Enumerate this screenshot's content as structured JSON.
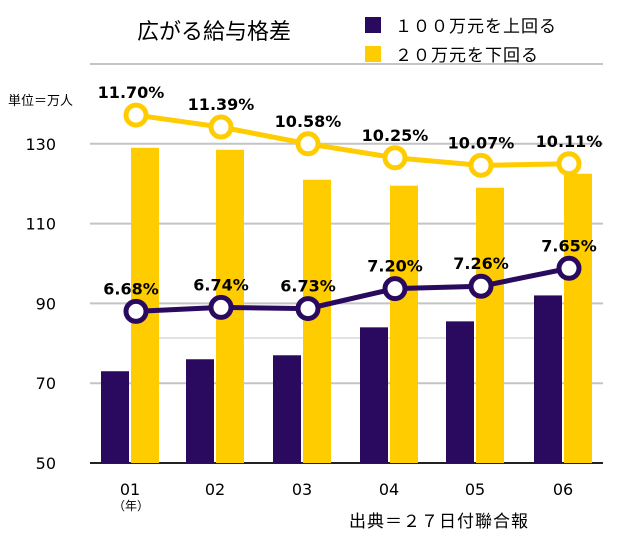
{
  "chart_data": {
    "type": "bar",
    "title": "広がる給与格差",
    "unit_label": "単位＝万人",
    "x_unit_label": "（年）",
    "source": "出典＝２７日付聯合報",
    "categories": [
      "01",
      "02",
      "03",
      "04",
      "05",
      "06"
    ],
    "ylim": [
      50,
      150
    ],
    "yticks": [
      50,
      70,
      90,
      110,
      130
    ],
    "grid": true,
    "legend_position": "top-right",
    "series": [
      {
        "name": "１００万元を上回る",
        "type": "bar",
        "color": "#2a0a5e",
        "values": [
          73,
          76,
          77,
          84,
          85.5,
          92
        ]
      },
      {
        "name": "２０万元を下回る",
        "type": "bar",
        "color": "#ffcc00",
        "values": [
          129,
          128.5,
          121,
          119.5,
          119,
          122.5
        ]
      }
    ],
    "lines": [
      {
        "color": "#2a0a5e",
        "point_values": [
          88,
          89,
          88.7,
          93.7,
          94.3,
          98.8
        ],
        "labels": [
          "6.68%",
          "6.74%",
          "6.73%",
          "7.20%",
          "7.26%",
          "7.65%"
        ]
      },
      {
        "color": "#ffcc00",
        "point_values": [
          137.2,
          134.2,
          130,
          126.5,
          124.6,
          125
        ],
        "labels": [
          "11.70%",
          "11.39%",
          "10.58%",
          "10.25%",
          "10.07%",
          "10.11%"
        ]
      }
    ]
  }
}
